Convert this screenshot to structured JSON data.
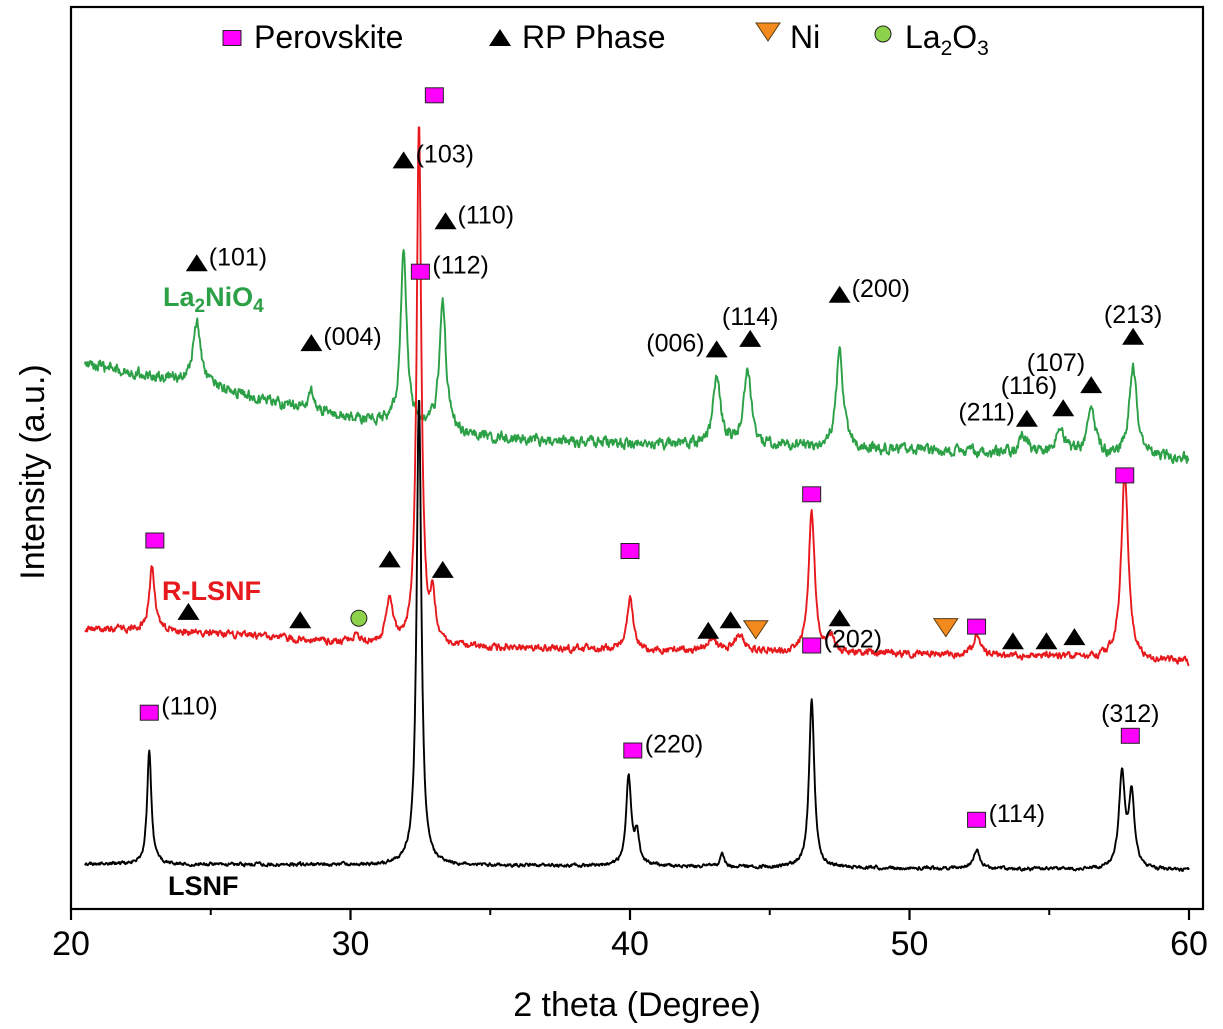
{
  "chart_data": {
    "type": "line",
    "xlabel": "2 theta (Degree)",
    "ylabel": "Intensity (a.u.)",
    "xlim": [
      20,
      60
    ],
    "xticks": [
      "20",
      "30",
      "40",
      "50",
      "60"
    ],
    "yticks": "none",
    "grid": false,
    "legend_position": "top",
    "legend": [
      {
        "marker": "square",
        "color": "#ff00ff",
        "label": "Perovskite"
      },
      {
        "marker": "triangle-up",
        "color": "#000000",
        "label": "RP Phase"
      },
      {
        "marker": "triangle-down",
        "color": "#f28a1e",
        "label": "Ni"
      },
      {
        "marker": "circle",
        "color": "#8cd24a",
        "label": "La2O3",
        "label_parts": [
          "La",
          "2",
          "O",
          "3"
        ]
      }
    ],
    "series": [
      {
        "name": "La2NiO4",
        "name_parts": [
          "La",
          "2",
          "NiO",
          "4"
        ],
        "color": "#2ca046",
        "baseline": {
          "x": [
            20.5,
            25,
            30,
            35,
            40,
            45,
            50,
            55,
            60
          ],
          "y": [
            2.39,
            2.28,
            2.13,
            2.04,
            2.01,
            2.0,
            1.98,
            1.96,
            1.94
          ]
        },
        "noise": 0.025,
        "peaks": [
          {
            "x": 24.5,
            "h": 0.3,
            "w": 0.16
          },
          {
            "x": 28.6,
            "h": 0.08,
            "w": 0.14
          },
          {
            "x": 31.9,
            "h": 0.83,
            "w": 0.13
          },
          {
            "x": 33.3,
            "h": 0.62,
            "w": 0.14
          },
          {
            "x": 43.1,
            "h": 0.32,
            "w": 0.16
          },
          {
            "x": 44.2,
            "h": 0.36,
            "w": 0.16
          },
          {
            "x": 47.5,
            "h": 0.47,
            "w": 0.15
          },
          {
            "x": 54.1,
            "h": 0.08,
            "w": 0.18
          },
          {
            "x": 55.4,
            "h": 0.13,
            "w": 0.18
          },
          {
            "x": 56.5,
            "h": 0.2,
            "w": 0.18
          },
          {
            "x": 58.0,
            "h": 0.43,
            "w": 0.16
          }
        ]
      },
      {
        "name": "R-LSNF",
        "color": "#e8191d",
        "baseline": {
          "x": [
            20.5,
            25,
            30,
            35,
            40,
            45,
            50,
            55,
            60
          ],
          "y": [
            1.13,
            1.11,
            1.06,
            1.04,
            1.03,
            1.02,
            1.01,
            1.0,
            0.97
          ]
        },
        "noise": 0.016,
        "peaks": [
          {
            "x": 22.9,
            "h": 0.3,
            "w": 0.12
          },
          {
            "x": 30.2,
            "h": 0.04,
            "w": 0.15
          },
          {
            "x": 31.4,
            "h": 0.22,
            "w": 0.13
          },
          {
            "x": 32.45,
            "h": 2.48,
            "w": 0.1
          },
          {
            "x": 32.95,
            "h": 0.22,
            "w": 0.1
          },
          {
            "x": 40.0,
            "h": 0.25,
            "w": 0.13
          },
          {
            "x": 42.9,
            "h": 0.05,
            "w": 0.2
          },
          {
            "x": 43.9,
            "h": 0.08,
            "w": 0.2
          },
          {
            "x": 46.5,
            "h": 0.67,
            "w": 0.13
          },
          {
            "x": 47.2,
            "h": 0.06,
            "w": 0.15
          },
          {
            "x": 52.4,
            "h": 0.09,
            "w": 0.15
          },
          {
            "x": 57.7,
            "h": 0.88,
            "w": 0.15
          }
        ]
      },
      {
        "name": "LSNF",
        "color": "#000000",
        "baseline": {
          "x": [
            20.5,
            30,
            40,
            50,
            60
          ],
          "y": [
            0.01,
            0.005,
            0.0,
            -0.01,
            -0.02
          ]
        },
        "noise": 0.008,
        "peaks": [
          {
            "x": 22.8,
            "h": 0.55,
            "w": 0.09
          },
          {
            "x": 32.45,
            "h": 2.23,
            "w": 0.1
          },
          {
            "x": 39.95,
            "h": 0.42,
            "w": 0.11
          },
          {
            "x": 40.25,
            "h": 0.14,
            "w": 0.1
          },
          {
            "x": 43.3,
            "h": 0.06,
            "w": 0.08
          },
          {
            "x": 46.5,
            "h": 0.8,
            "w": 0.11
          },
          {
            "x": 52.4,
            "h": 0.09,
            "w": 0.14
          },
          {
            "x": 57.6,
            "h": 0.44,
            "w": 0.13
          },
          {
            "x": 57.95,
            "h": 0.35,
            "w": 0.12
          }
        ]
      }
    ],
    "markers": [
      {
        "series": "La2NiO4",
        "phase": "RP Phase",
        "x": 24.5,
        "y": 2.87,
        "label": "(101)",
        "label_side": "right"
      },
      {
        "series": "La2NiO4",
        "phase": "RP Phase",
        "x": 28.6,
        "y": 2.49,
        "label": "(004)",
        "label_side": "right"
      },
      {
        "series": "La2NiO4",
        "phase": "RP Phase",
        "x": 31.9,
        "y": 3.36,
        "label": "(103)",
        "label_side": "right"
      },
      {
        "series": "La2NiO4",
        "phase": "RP Phase",
        "x": 33.4,
        "y": 3.07,
        "label": "(110)",
        "label_side": "right"
      },
      {
        "series": "La2NiO4",
        "phase": "RP Phase",
        "x": 43.1,
        "y": 2.46,
        "label": "(006)",
        "label_side": "left"
      },
      {
        "series": "La2NiO4",
        "phase": "RP Phase",
        "x": 44.3,
        "y": 2.51,
        "label": "(114)",
        "label_side": "above"
      },
      {
        "series": "La2NiO4",
        "phase": "RP Phase",
        "x": 47.5,
        "y": 2.72,
        "label": "(200)",
        "label_side": "right"
      },
      {
        "series": "La2NiO4",
        "phase": "RP Phase",
        "x": 54.2,
        "y": 2.13,
        "label": "(211)",
        "label_side": "left"
      },
      {
        "series": "La2NiO4",
        "phase": "RP Phase",
        "x": 55.5,
        "y": 2.18,
        "label": "(116)",
        "label_side": "upper-left"
      },
      {
        "series": "La2NiO4",
        "phase": "RP Phase",
        "x": 56.5,
        "y": 2.29,
        "label": "(107)",
        "label_side": "upper-left"
      },
      {
        "series": "La2NiO4",
        "phase": "RP Phase",
        "x": 58.0,
        "y": 2.52,
        "label": "(213)",
        "label_side": "above"
      },
      {
        "series": "R-LSNF",
        "phase": "Perovskite",
        "x": 23.0,
        "y": 1.55,
        "label": ""
      },
      {
        "series": "R-LSNF",
        "phase": "RP Phase",
        "x": 24.2,
        "y": 1.21,
        "label": ""
      },
      {
        "series": "R-LSNF",
        "phase": "RP Phase",
        "x": 28.2,
        "y": 1.17,
        "label": ""
      },
      {
        "series": "R-LSNF",
        "phase": "La2O3",
        "x": 30.3,
        "y": 1.18,
        "label": ""
      },
      {
        "series": "R-LSNF",
        "phase": "RP Phase",
        "x": 31.4,
        "y": 1.46,
        "label": ""
      },
      {
        "series": "R-LSNF",
        "phase": "Perovskite",
        "x": 33.0,
        "y": 3.67,
        "label": ""
      },
      {
        "series": "R-LSNF",
        "phase": "RP Phase",
        "x": 33.3,
        "y": 1.41,
        "label": ""
      },
      {
        "series": "R-LSNF",
        "phase": "Perovskite",
        "x": 40.0,
        "y": 1.5,
        "label": ""
      },
      {
        "series": "R-LSNF",
        "phase": "RP Phase",
        "x": 42.8,
        "y": 1.12,
        "label": ""
      },
      {
        "series": "R-LSNF",
        "phase": "RP Phase",
        "x": 43.6,
        "y": 1.17,
        "label": ""
      },
      {
        "series": "R-LSNF",
        "phase": "Ni",
        "x": 44.5,
        "y": 1.13,
        "label": ""
      },
      {
        "series": "R-LSNF",
        "phase": "Perovskite",
        "x": 46.5,
        "y": 1.77,
        "label": ""
      },
      {
        "series": "R-LSNF",
        "phase": "RP Phase",
        "x": 47.5,
        "y": 1.18,
        "label": ""
      },
      {
        "series": "R-LSNF",
        "phase": "Ni",
        "x": 51.3,
        "y": 1.14,
        "label": ""
      },
      {
        "series": "R-LSNF",
        "phase": "Perovskite",
        "x": 52.4,
        "y": 1.14,
        "label": ""
      },
      {
        "series": "R-LSNF",
        "phase": "RP Phase",
        "x": 53.7,
        "y": 1.07,
        "label": ""
      },
      {
        "series": "R-LSNF",
        "phase": "RP Phase",
        "x": 54.9,
        "y": 1.07,
        "label": ""
      },
      {
        "series": "R-LSNF",
        "phase": "RP Phase",
        "x": 55.9,
        "y": 1.09,
        "label": ""
      },
      {
        "series": "R-LSNF",
        "phase": "Perovskite",
        "x": 57.7,
        "y": 1.86,
        "label": ""
      },
      {
        "series": "LSNF",
        "phase": "Perovskite",
        "x": 22.8,
        "y": 0.73,
        "label": "(110)",
        "label_side": "right"
      },
      {
        "series": "LSNF",
        "phase": "Perovskite",
        "x": 32.5,
        "y": 2.83,
        "label": "(112)",
        "label_side": "right"
      },
      {
        "series": "LSNF",
        "phase": "Perovskite",
        "x": 40.1,
        "y": 0.55,
        "label": "(220)",
        "label_side": "right"
      },
      {
        "series": "LSNF",
        "phase": "Perovskite",
        "x": 46.5,
        "y": 1.05,
        "label": "(202)",
        "label_side": "right"
      },
      {
        "series": "LSNF",
        "phase": "Perovskite",
        "x": 52.4,
        "y": 0.22,
        "label": "(114)",
        "label_side": "right"
      },
      {
        "series": "LSNF",
        "phase": "Perovskite",
        "x": 57.9,
        "y": 0.62,
        "label": "(312)",
        "label_side": "above"
      }
    ]
  }
}
